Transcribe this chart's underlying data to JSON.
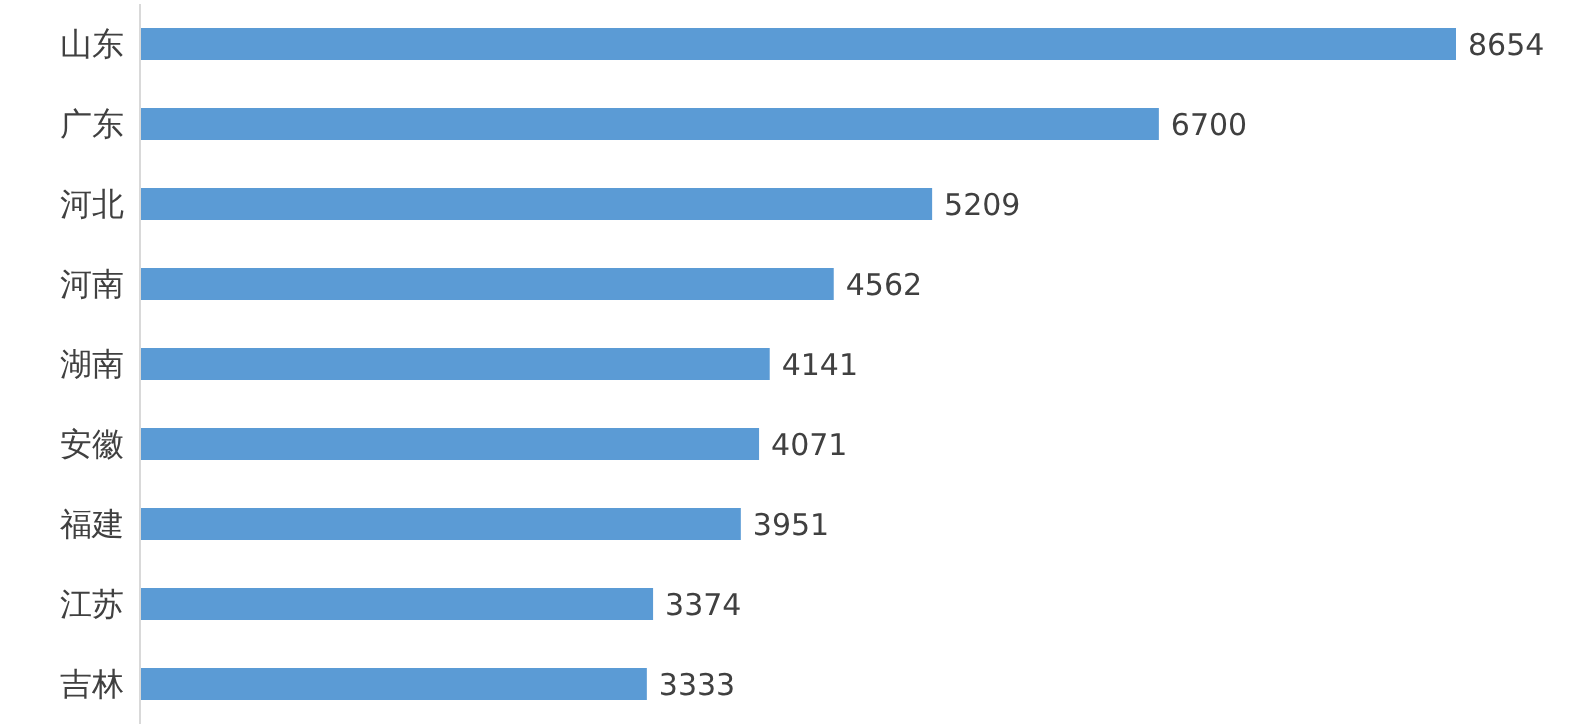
{
  "chart_data": {
    "type": "bar",
    "orientation": "horizontal",
    "categories": [
      "山东",
      "广东",
      "河北",
      "河南",
      "湖南",
      "安徽",
      "福建",
      "江苏",
      "吉林"
    ],
    "values": [
      8654,
      6700,
      5209,
      4562,
      4141,
      4071,
      3951,
      3374,
      3333
    ],
    "color": "#5b9bd5",
    "data_labels": true,
    "tick_labels": "y"
  }
}
